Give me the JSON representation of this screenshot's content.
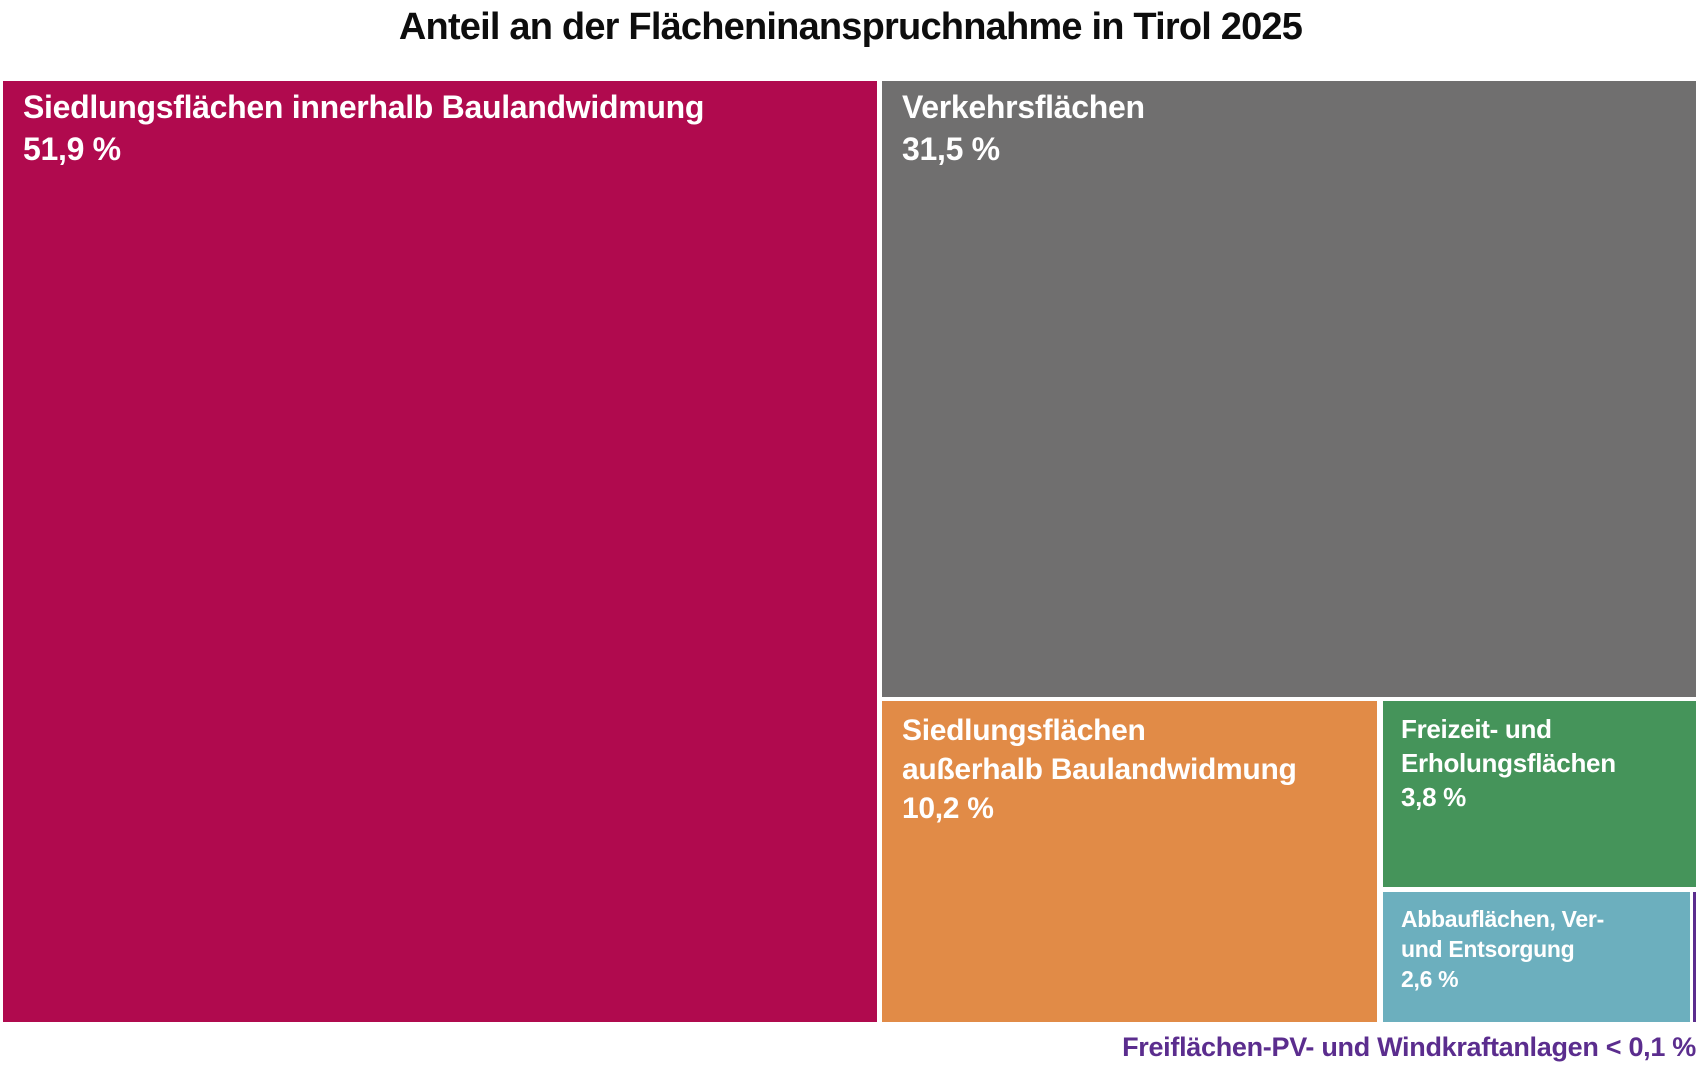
{
  "title": "Anteil an der Flächeninanspruchnahme in Tirol 2025",
  "colors": {
    "background": "#FFFFFF",
    "title_text": "#0D0D0D",
    "cell_text": "#FFFFFF"
  },
  "chart_data": {
    "type": "treemap",
    "title": "Anteil an der Flächeninanspruchnahme in Tirol 2025",
    "unit": "percent",
    "total": 100.0,
    "legend": "none",
    "layout": "large block left (51.9%); right column: grey block on top, bottom row split into orange block, and a right sub-column of green over teal; smallest category drawn as a thin purple sliver at far bottom right, labelled by external caption below the chart",
    "items": [
      {
        "label": "Siedlungsflächen innerhalb Baulandwidmung",
        "value": 51.9,
        "display_value": "51,9 %",
        "color": "#B00A4E",
        "lines": [
          "Siedlungsflächen innerhalb Baulandwidmung"
        ]
      },
      {
        "label": "Verkehrsflächen",
        "value": 31.5,
        "display_value": "31,5 %",
        "color": "#706F6F",
        "lines": [
          "Verkehrsflächen"
        ]
      },
      {
        "label": "Siedlungsflächen außerhalb Baulandwidmung",
        "value": 10.2,
        "display_value": "10,2 %",
        "color": "#E18B47",
        "lines": [
          "Siedlungsflächen",
          "außerhalb Baulandwidmung"
        ]
      },
      {
        "label": "Freizeit- und Erholungsflächen",
        "value": 3.8,
        "display_value": "3,8 %",
        "color": "#45945A",
        "lines": [
          "Freizeit- und",
          "Erholungsflächen"
        ]
      },
      {
        "label": "Abbauflächen, Ver- und Entsorgung",
        "value": 2.6,
        "display_value": "2,6 %",
        "color": "#6CAFBE",
        "lines": [
          "Abbauflächen, Ver-",
          "und Entsorgung"
        ]
      },
      {
        "label": "Freiflächen-PV- und Windkraftanlagen",
        "value": 0.1,
        "display_value": "< 0,1 %",
        "color": "#5B2D8E"
      }
    ],
    "caption": "Freiflächen-PV- und Windkraftanlagen < 0,1 %"
  }
}
